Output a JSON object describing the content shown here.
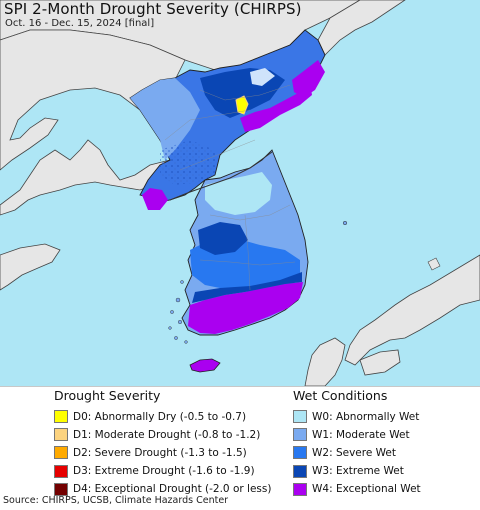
{
  "header": {
    "title": "SPI 2-Month Drought Severity (CHIRPS)",
    "subtitle": "Oct. 16 - Dec. 15, 2024 [final]"
  },
  "legend": {
    "drought_heading": "Drought Severity",
    "drought_items": [
      {
        "label": "D0: Abnormally Dry (-0.5 to -0.7)",
        "color": "#ffff00"
      },
      {
        "label": "D1: Moderate Drought (-0.8 to -1.2)",
        "color": "#fcd37f"
      },
      {
        "label": "D2: Severe Drought (-1.3 to -1.5)",
        "color": "#ffaa00"
      },
      {
        "label": "D3: Extreme Drought (-1.6 to -1.9)",
        "color": "#e60000"
      },
      {
        "label": "D4: Exceptional Drought (-2.0 or less)",
        "color": "#730000"
      }
    ],
    "wet_heading": "Wet Conditions",
    "wet_items": [
      {
        "label": "W0: Abnormally Wet",
        "color": "#aee6f5"
      },
      {
        "label": "W1: Moderate Wet",
        "color": "#7aaaf0"
      },
      {
        "label": "W2: Severe Wet",
        "color": "#2878f0"
      },
      {
        "label": "W3: Extreme Wet",
        "color": "#0a46b4"
      },
      {
        "label": "W4: Exceptional Wet",
        "color": "#aa00f0"
      }
    ]
  },
  "footer": {
    "source": "Source: CHIRPS, UCSB, Climate Hazards Center"
  },
  "colors": {
    "ocean": "#ffffff",
    "land_outside": "#e6e6e6",
    "boundary": "#555555"
  }
}
